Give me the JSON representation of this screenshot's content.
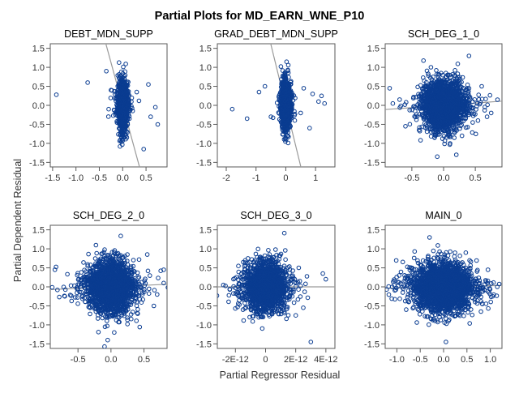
{
  "chart_data": {
    "type": "scatter",
    "title": "Partial Plots for MD_EARN_WNE_P10",
    "xlabel": "Partial Regressor Residual",
    "ylabel": "Partial Dependent Residual",
    "grid": false,
    "legend": "none",
    "colors": {
      "marker": "#0a3c91",
      "fit_line": "#9a9a9a",
      "frame": "#5a5a5a"
    },
    "panels": [
      {
        "title": "DEBT_MDN_SUPP",
        "xlim": [
          -1.55,
          0.95
        ],
        "ylim": [
          -1.62,
          1.62
        ],
        "xticks": [
          -1.5,
          -1.0,
          -0.5,
          0.0,
          0.5
        ],
        "xtick_labels": [
          "-1.5",
          "-1.0",
          "-0.5",
          "0.0",
          "0.5"
        ],
        "yticks": [
          -1.5,
          -1.0,
          -0.5,
          0.0,
          0.5,
          1.0,
          1.5
        ],
        "ytick_labels": [
          "-1.5",
          "-1.0",
          "-0.5",
          "0.0",
          "0.5",
          "1.0",
          "1.5"
        ],
        "fit_slope": -4.5,
        "points": {
          "count": 1200,
          "x_spread": 0.05,
          "y_spread": 0.32,
          "outliers": [
            [
              -1.42,
              0.28
            ],
            [
              -0.75,
              0.6
            ],
            [
              -0.35,
              0.9
            ],
            [
              0.55,
              0.55
            ],
            [
              0.6,
              -0.3
            ],
            [
              0.75,
              -0.5
            ],
            [
              0.45,
              -1.15
            ],
            [
              0.7,
              -0.05
            ],
            [
              0.35,
              0.12
            ],
            [
              -0.3,
              -0.1
            ],
            [
              0.3,
              0.35
            ],
            [
              -0.25,
              0.4
            ]
          ]
        }
      },
      {
        "title": "GRAD_DEBT_MDN_SUPP",
        "xlim": [
          -2.3,
          1.65
        ],
        "ylim": [
          -1.62,
          1.62
        ],
        "xticks": [
          -2,
          -1,
          0,
          1
        ],
        "xtick_labels": [
          "-2",
          "-1",
          "0",
          "1"
        ],
        "yticks": [
          -1.5,
          -1.0,
          -0.5,
          0.0,
          0.5,
          1.0,
          1.5
        ],
        "ytick_labels": [
          "-1.5",
          "-1.0",
          "-0.5",
          "0.0",
          "0.5",
          "1.0",
          "1.5"
        ],
        "fit_slope": -3.2,
        "points": {
          "count": 1300,
          "x_spread": 0.07,
          "y_spread": 0.32,
          "outliers": [
            [
              -1.8,
              -0.1
            ],
            [
              -1.3,
              -0.35
            ],
            [
              -0.9,
              0.35
            ],
            [
              -0.7,
              0.5
            ],
            [
              0.9,
              0.3
            ],
            [
              1.1,
              0.1
            ],
            [
              1.3,
              0.05
            ],
            [
              0.8,
              -0.6
            ],
            [
              0.6,
              0.45
            ],
            [
              -0.5,
              -0.3
            ],
            [
              1.2,
              0.25
            ],
            [
              0.5,
              -0.2
            ]
          ]
        }
      },
      {
        "title": "SCH_DEG_1_0",
        "xlim": [
          -0.92,
          0.92
        ],
        "ylim": [
          -1.62,
          1.62
        ],
        "xticks": [
          -0.5,
          0.0,
          0.5
        ],
        "xtick_labels": [
          "-0.5",
          "0.0",
          "0.5"
        ],
        "yticks": [
          -1.5,
          -1.0,
          -0.5,
          0.0,
          0.5,
          1.0,
          1.5
        ],
        "ytick_labels": [
          "-1.5",
          "-1.0",
          "-0.5",
          "0.0",
          "0.5",
          "1.0",
          "1.5"
        ],
        "fit_slope": 0.12,
        "points": {
          "count": 2000,
          "x_spread": 0.16,
          "y_spread": 0.33,
          "outliers": [
            [
              -0.85,
              0.45
            ],
            [
              0.85,
              0.15
            ],
            [
              -0.8,
              0.05
            ],
            [
              0.75,
              -0.2
            ],
            [
              0.6,
              0.5
            ],
            [
              -0.6,
              -0.55
            ],
            [
              0.4,
              1.3
            ],
            [
              0.2,
              -1.3
            ],
            [
              -0.1,
              -1.35
            ]
          ]
        }
      },
      {
        "title": "SCH_DEG_2_0",
        "xlim": [
          -0.92,
          0.85
        ],
        "ylim": [
          -1.62,
          1.62
        ],
        "xticks": [
          -0.5,
          0.0,
          0.5
        ],
        "xtick_labels": [
          "-0.5",
          "0.0",
          "0.5"
        ],
        "yticks": [
          -1.5,
          -1.0,
          -0.5,
          0.0,
          0.5,
          1.0,
          1.5
        ],
        "ytick_labels": [
          "-1.5",
          "-1.0",
          "-0.5",
          "0.0",
          "0.5",
          "1.0",
          "1.5"
        ],
        "fit_slope": 0.08,
        "points": {
          "count": 2000,
          "x_spread": 0.17,
          "y_spread": 0.35,
          "outliers": [
            [
              -0.85,
              0.45
            ],
            [
              0.8,
              0.1
            ],
            [
              0.7,
              -0.2
            ],
            [
              0.65,
              -0.5
            ],
            [
              -0.7,
              -0.25
            ],
            [
              0.8,
              0.45
            ],
            [
              -0.05,
              -1.4
            ],
            [
              0.05,
              -1.2
            ],
            [
              0.55,
              0.85
            ]
          ]
        }
      },
      {
        "title": "SCH_DEG_3_0",
        "xlim": [
          -3.2e-12,
          4.6e-12
        ],
        "ylim": [
          -1.62,
          1.62
        ],
        "xticks": [
          -2e-12,
          0,
          2e-12,
          4e-12
        ],
        "xtick_labels": [
          "-2E-12",
          "0",
          "2E-12",
          "4E-12"
        ],
        "yticks": [
          -1.5,
          -1.0,
          -0.5,
          0.0,
          0.5,
          1.0,
          1.5
        ],
        "ytick_labels": [
          "-1.5",
          "-1.0",
          "-0.5",
          "0.0",
          "0.5",
          "1.0",
          "1.5"
        ],
        "fit_slope": 0.0,
        "points": {
          "count": 1800,
          "x_spread": 6.5e-13,
          "y_spread": 0.33,
          "outliers": [
            [
              -2.8e-12,
              0.05
            ],
            [
              3.8e-12,
              0.35
            ],
            [
              4e-12,
              0.2
            ],
            [
              2.5e-12,
              -0.55
            ],
            [
              2e-12,
              -0.75
            ],
            [
              3e-12,
              -1.45
            ],
            [
              -1.5e-12,
              -0.6
            ],
            [
              2.2e-12,
              0.5
            ],
            [
              -1.8e-12,
              0.55
            ]
          ]
        }
      },
      {
        "title": "MAIN_0",
        "xlim": [
          -1.25,
          1.25
        ],
        "ylim": [
          -1.62,
          1.62
        ],
        "xticks": [
          -1.0,
          -0.5,
          0.0,
          0.5,
          1.0
        ],
        "xtick_labels": [
          "-1.0",
          "-0.5",
          "0.0",
          "0.5",
          "1.0"
        ],
        "yticks": [
          -1.5,
          -1.0,
          -0.5,
          0.0,
          0.5,
          1.0,
          1.5
        ],
        "ytick_labels": [
          "-1.5",
          "-1.0",
          "-0.5",
          "0.0",
          "0.5",
          "1.0",
          "1.5"
        ],
        "fit_slope": 0.03,
        "points": {
          "count": 2400,
          "x_spread": 0.3,
          "y_spread": 0.33,
          "outliers": [
            [
              -1.1,
              0.0
            ],
            [
              1.15,
              0.0
            ],
            [
              1.05,
              -0.25
            ],
            [
              -0.95,
              0.3
            ],
            [
              -0.3,
              1.3
            ],
            [
              0.05,
              -1.45
            ],
            [
              0.8,
              -0.65
            ],
            [
              -0.8,
              -0.6
            ],
            [
              0.95,
              0.45
            ]
          ]
        }
      }
    ]
  }
}
